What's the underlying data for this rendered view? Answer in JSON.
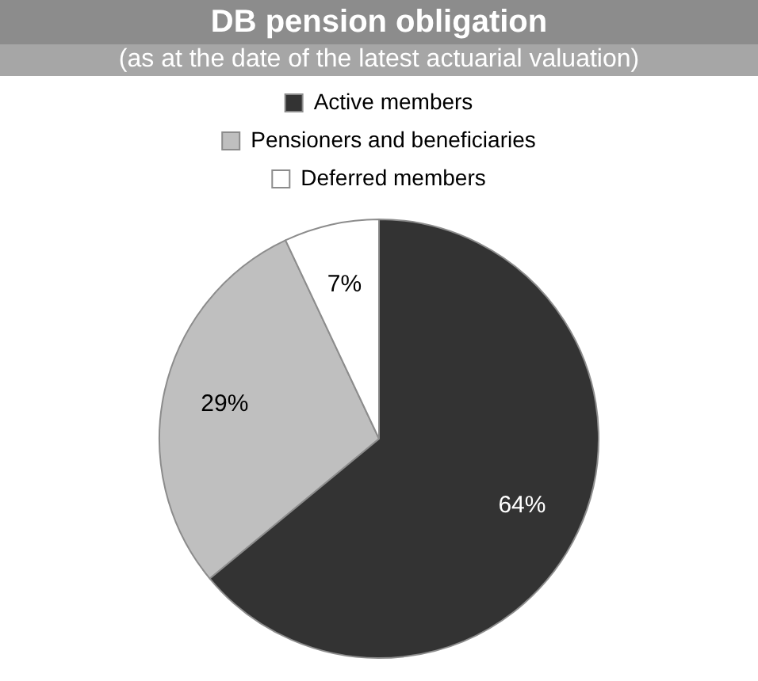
{
  "chart_data": {
    "type": "pie",
    "title": "DB pension obligation",
    "subtitle": "(as at the date of the latest actuarial valuation)",
    "categories": [
      "Active members",
      "Pensioners and beneficiaries",
      "Deferred members"
    ],
    "values": [
      64,
      29,
      7
    ],
    "colors": [
      "#333333",
      "#bfbfbf",
      "#ffffff"
    ],
    "value_labels": [
      "64%",
      "29%",
      "7%"
    ],
    "legend": "top"
  }
}
